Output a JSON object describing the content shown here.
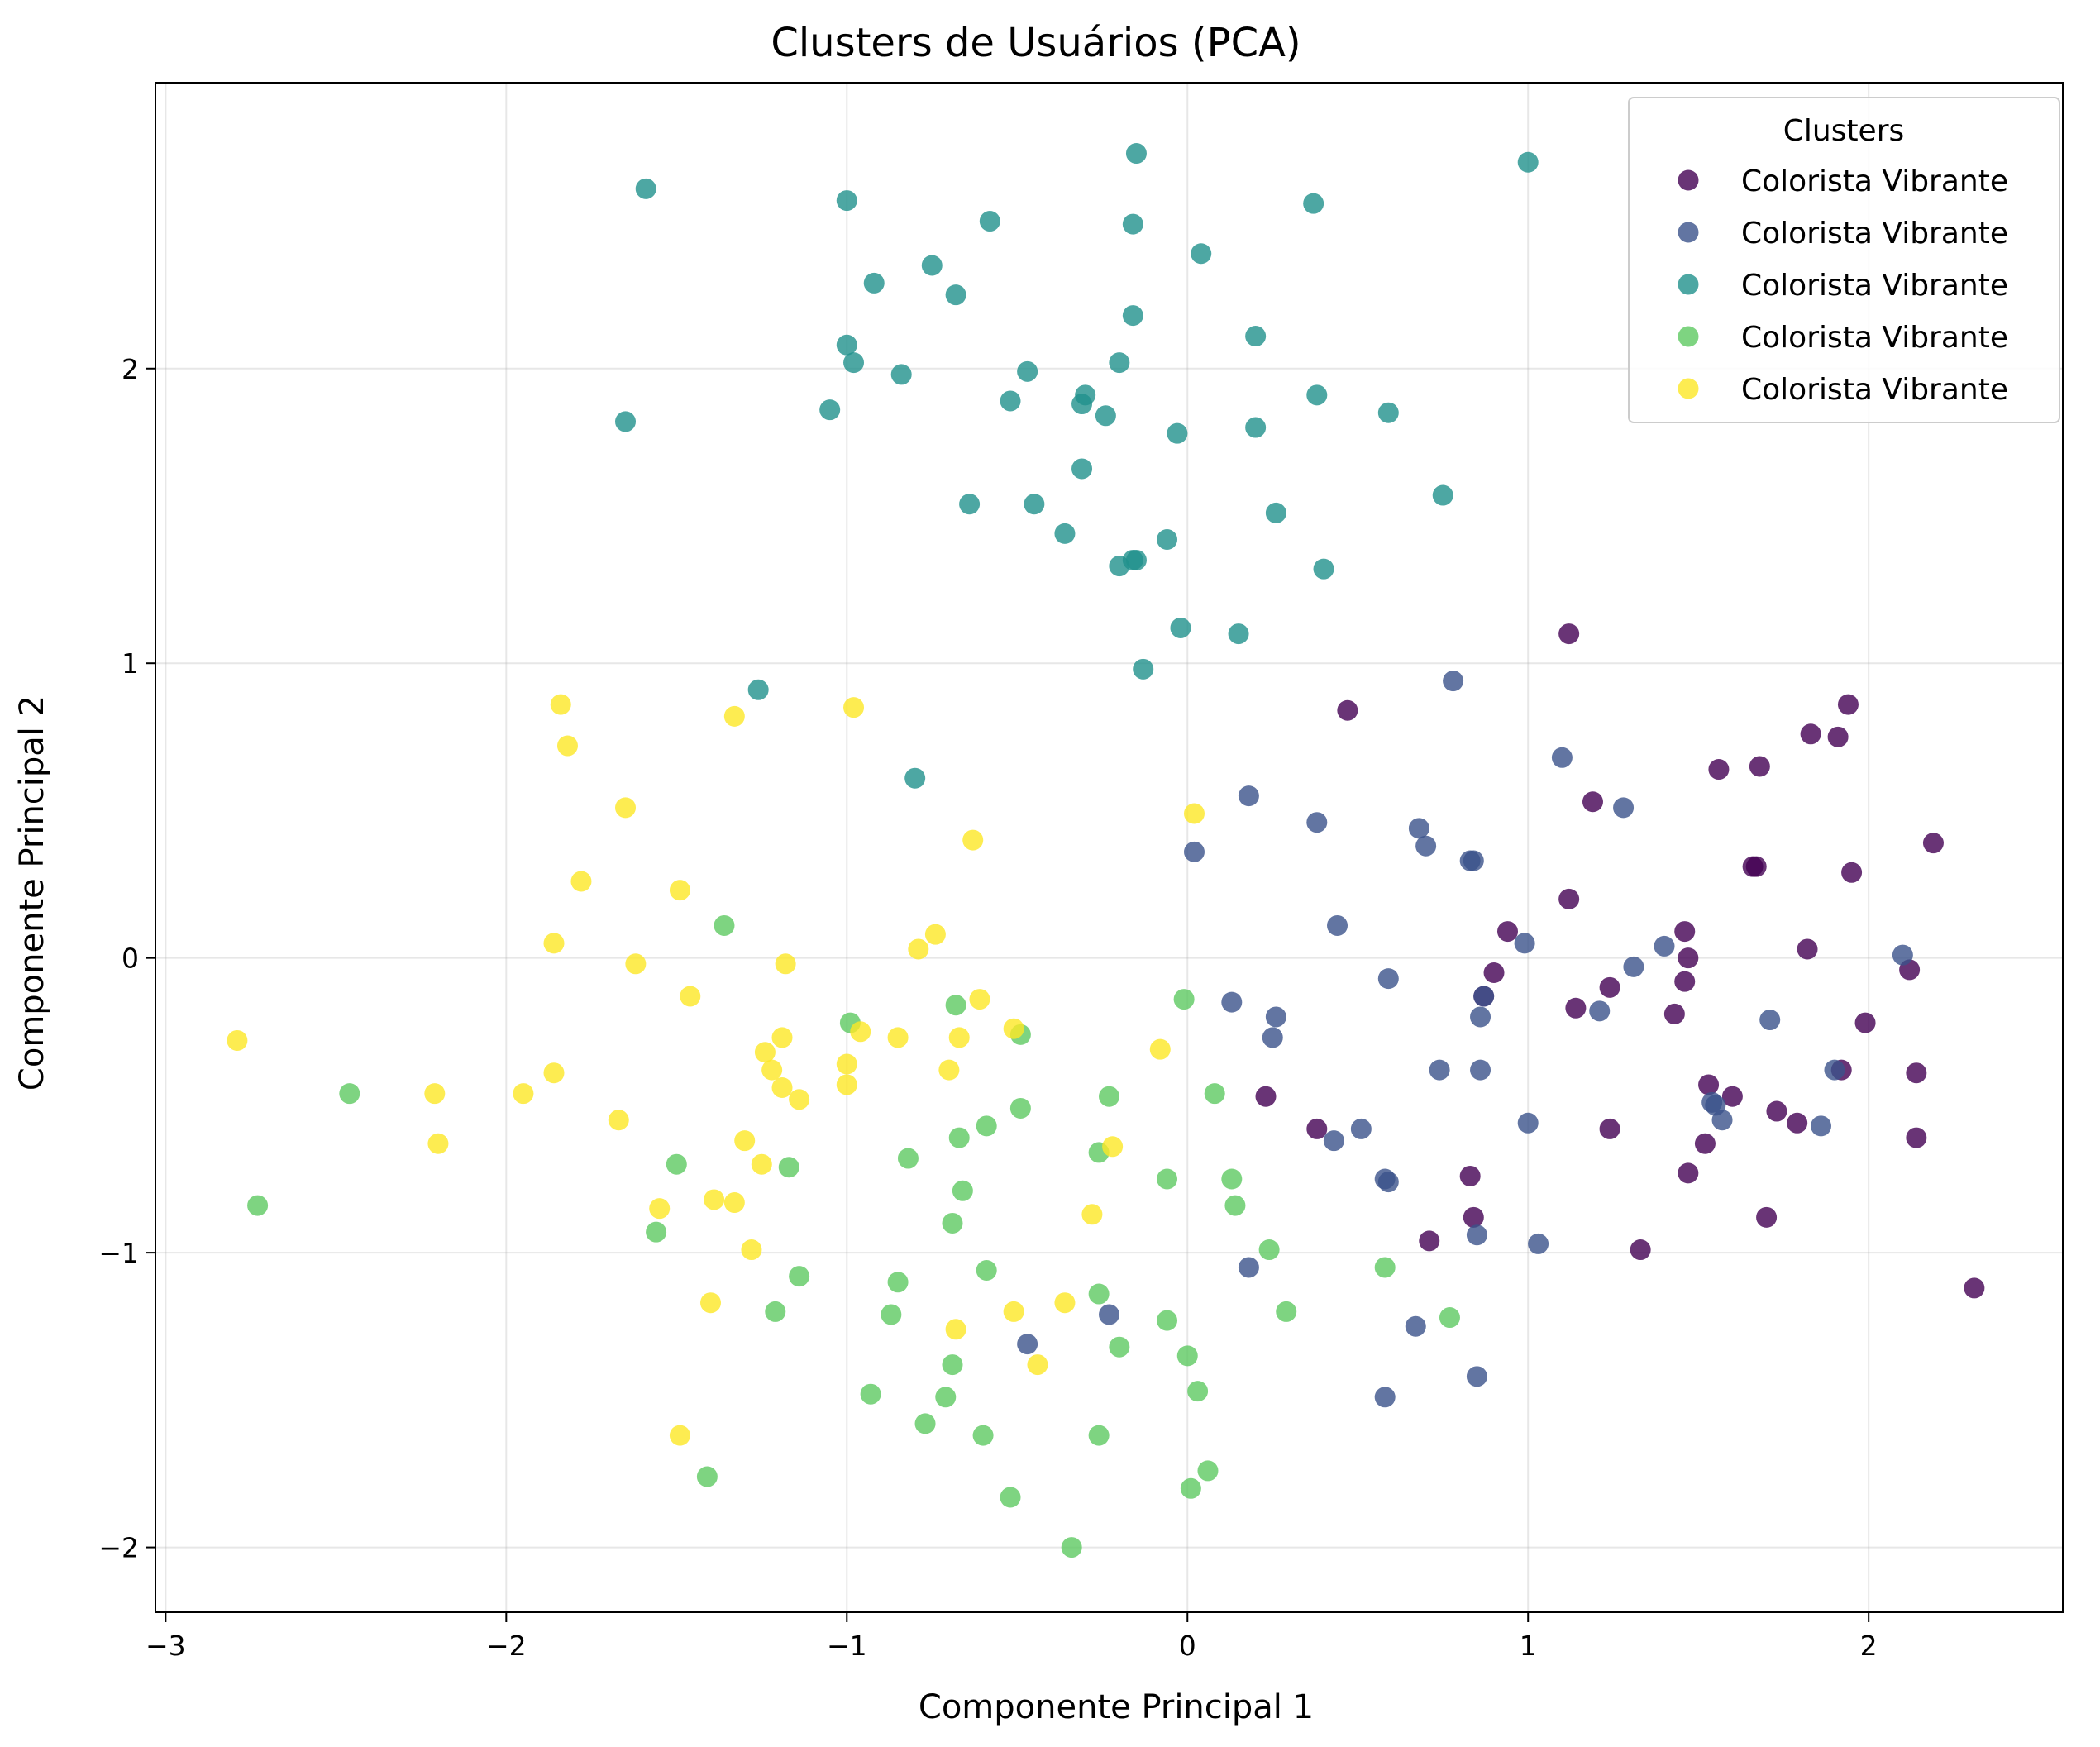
{
  "chart_data": {
    "type": "scatter",
    "title": "Clusters de Usuários (PCA)",
    "xlabel": "Componente Principal 1",
    "ylabel": "Componente Principal 2",
    "xlim": [
      -3.03,
      2.57
    ],
    "ylim": [
      -2.22,
      2.97
    ],
    "xticks": [
      -3,
      -2,
      -1,
      0,
      1,
      2
    ],
    "yticks": [
      -2,
      -1,
      0,
      1,
      2
    ],
    "xtick_labels": [
      "−3",
      "−2",
      "−1",
      "0",
      "1",
      "2"
    ],
    "ytick_labels": [
      "−2",
      "−1",
      "0",
      "1",
      "2"
    ],
    "grid": true,
    "legend_title": "Clusters",
    "legend_position": "top-right",
    "series": [
      {
        "name": "Colorista Vibrante",
        "color": "#440154",
        "points": [
          [
            1.12,
            1.1
          ],
          [
            0.47,
            0.84
          ],
          [
            1.94,
            0.86
          ],
          [
            1.83,
            0.76
          ],
          [
            1.91,
            0.75
          ],
          [
            1.56,
            0.64
          ],
          [
            1.68,
            0.65
          ],
          [
            1.19,
            0.53
          ],
          [
            2.19,
            0.39
          ],
          [
            1.67,
            0.31
          ],
          [
            1.66,
            0.31
          ],
          [
            1.95,
            0.29
          ],
          [
            1.12,
            0.2
          ],
          [
            0.94,
            0.09
          ],
          [
            1.46,
            0.09
          ],
          [
            1.82,
            0.03
          ],
          [
            1.47,
            0.0
          ],
          [
            1.46,
            -0.08
          ],
          [
            0.9,
            -0.05
          ],
          [
            2.12,
            -0.04
          ],
          [
            1.24,
            -0.1
          ],
          [
            0.87,
            -0.13
          ],
          [
            1.14,
            -0.17
          ],
          [
            1.43,
            -0.19
          ],
          [
            1.99,
            -0.22
          ],
          [
            2.14,
            -0.39
          ],
          [
            1.92,
            -0.38
          ],
          [
            1.53,
            -0.43
          ],
          [
            1.6,
            -0.47
          ],
          [
            0.23,
            -0.47
          ],
          [
            1.73,
            -0.52
          ],
          [
            1.79,
            -0.56
          ],
          [
            0.38,
            -0.58
          ],
          [
            1.24,
            -0.58
          ],
          [
            2.14,
            -0.61
          ],
          [
            1.52,
            -0.63
          ],
          [
            1.47,
            -0.73
          ],
          [
            0.83,
            -0.74
          ],
          [
            0.84,
            -0.88
          ],
          [
            1.7,
            -0.88
          ],
          [
            0.71,
            -0.96
          ],
          [
            1.33,
            -0.99
          ],
          [
            2.31,
            -1.12
          ]
        ]
      },
      {
        "name": "Colorista Vibrante",
        "color": "#3b528b",
        "points": [
          [
            0.78,
            0.94
          ],
          [
            1.1,
            0.68
          ],
          [
            0.18,
            0.55
          ],
          [
            1.28,
            0.51
          ],
          [
            0.38,
            0.46
          ],
          [
            0.68,
            0.44
          ],
          [
            0.7,
            0.38
          ],
          [
            0.02,
            0.36
          ],
          [
            0.83,
            0.33
          ],
          [
            0.84,
            0.33
          ],
          [
            0.44,
            0.11
          ],
          [
            0.99,
            0.05
          ],
          [
            1.4,
            0.04
          ],
          [
            2.1,
            0.01
          ],
          [
            1.31,
            -0.03
          ],
          [
            0.59,
            -0.07
          ],
          [
            0.87,
            -0.13
          ],
          [
            0.13,
            -0.15
          ],
          [
            1.21,
            -0.18
          ],
          [
            0.26,
            -0.2
          ],
          [
            0.86,
            -0.2
          ],
          [
            1.71,
            -0.21
          ],
          [
            0.25,
            -0.27
          ],
          [
            0.74,
            -0.38
          ],
          [
            0.86,
            -0.38
          ],
          [
            1.9,
            -0.38
          ],
          [
            1.54,
            -0.49
          ],
          [
            1.55,
            -0.5
          ],
          [
            1.57,
            -0.55
          ],
          [
            1.0,
            -0.56
          ],
          [
            1.86,
            -0.57
          ],
          [
            0.51,
            -0.58
          ],
          [
            0.43,
            -0.62
          ],
          [
            0.58,
            -0.75
          ],
          [
            0.59,
            -0.76
          ],
          [
            0.85,
            -0.94
          ],
          [
            1.03,
            -0.97
          ],
          [
            0.18,
            -1.05
          ],
          [
            -0.23,
            -1.21
          ],
          [
            0.67,
            -1.25
          ],
          [
            -0.47,
            -1.31
          ],
          [
            0.85,
            -1.42
          ],
          [
            0.58,
            -1.49
          ]
        ]
      },
      {
        "name": "Colorista Vibrante",
        "color": "#21918c",
        "points": [
          [
            -0.15,
            2.73
          ],
          [
            1.0,
            2.7
          ],
          [
            -1.59,
            2.61
          ],
          [
            -1.0,
            2.57
          ],
          [
            0.37,
            2.56
          ],
          [
            -0.58,
            2.5
          ],
          [
            -0.16,
            2.49
          ],
          [
            0.04,
            2.39
          ],
          [
            -0.75,
            2.35
          ],
          [
            -0.92,
            2.29
          ],
          [
            -0.68,
            2.25
          ],
          [
            -0.16,
            2.18
          ],
          [
            0.2,
            2.11
          ],
          [
            -1.0,
            2.08
          ],
          [
            -0.98,
            2.02
          ],
          [
            -0.2,
            2.02
          ],
          [
            -0.47,
            1.99
          ],
          [
            -0.84,
            1.98
          ],
          [
            -0.3,
            1.91
          ],
          [
            0.38,
            1.91
          ],
          [
            -0.52,
            1.89
          ],
          [
            -0.31,
            1.88
          ],
          [
            -1.05,
            1.86
          ],
          [
            0.59,
            1.85
          ],
          [
            -0.24,
            1.84
          ],
          [
            -1.65,
            1.82
          ],
          [
            0.2,
            1.8
          ],
          [
            -0.03,
            1.78
          ],
          [
            -0.31,
            1.66
          ],
          [
            -0.64,
            1.54
          ],
          [
            -0.45,
            1.54
          ],
          [
            0.75,
            1.57
          ],
          [
            0.26,
            1.51
          ],
          [
            -0.36,
            1.44
          ],
          [
            -0.06,
            1.42
          ],
          [
            -0.15,
            1.35
          ],
          [
            -0.16,
            1.35
          ],
          [
            -0.2,
            1.33
          ],
          [
            0.4,
            1.32
          ],
          [
            -0.02,
            1.12
          ],
          [
            0.15,
            1.1
          ],
          [
            -0.13,
            0.98
          ],
          [
            -1.26,
            0.91
          ],
          [
            -0.8,
            0.61
          ]
        ]
      },
      {
        "name": "Colorista Vibrante",
        "color": "#5ec962",
        "points": [
          [
            -1.36,
            0.11
          ],
          [
            -0.01,
            -0.14
          ],
          [
            -0.68,
            -0.16
          ],
          [
            -0.99,
            -0.22
          ],
          [
            -0.49,
            -0.26
          ],
          [
            -2.46,
            -0.46
          ],
          [
            0.08,
            -0.46
          ],
          [
            -0.23,
            -0.47
          ],
          [
            -0.49,
            -0.51
          ],
          [
            -0.59,
            -0.57
          ],
          [
            -0.67,
            -0.61
          ],
          [
            -0.26,
            -0.66
          ],
          [
            -0.82,
            -0.68
          ],
          [
            -1.5,
            -0.7
          ],
          [
            -1.17,
            -0.71
          ],
          [
            -0.06,
            -0.75
          ],
          [
            0.13,
            -0.75
          ],
          [
            -0.66,
            -0.79
          ],
          [
            -2.73,
            -0.84
          ],
          [
            0.14,
            -0.84
          ],
          [
            -0.69,
            -0.9
          ],
          [
            -1.56,
            -0.93
          ],
          [
            0.24,
            -0.99
          ],
          [
            -0.59,
            -1.06
          ],
          [
            0.58,
            -1.05
          ],
          [
            -1.14,
            -1.08
          ],
          [
            -0.85,
            -1.1
          ],
          [
            -0.26,
            -1.14
          ],
          [
            -1.21,
            -1.2
          ],
          [
            -0.87,
            -1.21
          ],
          [
            0.29,
            -1.2
          ],
          [
            0.77,
            -1.22
          ],
          [
            -0.06,
            -1.23
          ],
          [
            -0.2,
            -1.32
          ],
          [
            0.0,
            -1.35
          ],
          [
            -0.69,
            -1.38
          ],
          [
            0.03,
            -1.47
          ],
          [
            -0.93,
            -1.48
          ],
          [
            -0.71,
            -1.49
          ],
          [
            -0.77,
            -1.58
          ],
          [
            -0.26,
            -1.62
          ],
          [
            -0.6,
            -1.62
          ],
          [
            0.06,
            -1.74
          ],
          [
            -1.41,
            -1.76
          ],
          [
            0.01,
            -1.8
          ],
          [
            -0.52,
            -1.83
          ],
          [
            -0.34,
            -2.0
          ]
        ]
      },
      {
        "name": "Colorista Vibrante",
        "color": "#fde725",
        "points": [
          [
            -1.84,
            0.86
          ],
          [
            -0.98,
            0.85
          ],
          [
            -1.33,
            0.82
          ],
          [
            -1.82,
            0.72
          ],
          [
            -1.65,
            0.51
          ],
          [
            0.02,
            0.49
          ],
          [
            -0.63,
            0.4
          ],
          [
            -1.78,
            0.26
          ],
          [
            -1.49,
            0.23
          ],
          [
            -0.74,
            0.08
          ],
          [
            -1.86,
            0.05
          ],
          [
            -0.79,
            0.03
          ],
          [
            -1.62,
            -0.02
          ],
          [
            -1.18,
            -0.02
          ],
          [
            -1.46,
            -0.13
          ],
          [
            -0.61,
            -0.14
          ],
          [
            -0.96,
            -0.25
          ],
          [
            -0.51,
            -0.24
          ],
          [
            -2.79,
            -0.28
          ],
          [
            -1.19,
            -0.27
          ],
          [
            -0.85,
            -0.27
          ],
          [
            -0.67,
            -0.27
          ],
          [
            -0.08,
            -0.31
          ],
          [
            -1.24,
            -0.32
          ],
          [
            -1.0,
            -0.36
          ],
          [
            -1.22,
            -0.38
          ],
          [
            -0.7,
            -0.38
          ],
          [
            -1.86,
            -0.39
          ],
          [
            -1.19,
            -0.44
          ],
          [
            -1.0,
            -0.43
          ],
          [
            -1.95,
            -0.46
          ],
          [
            -2.21,
            -0.46
          ],
          [
            -1.14,
            -0.48
          ],
          [
            -1.67,
            -0.55
          ],
          [
            -1.3,
            -0.62
          ],
          [
            -2.2,
            -0.63
          ],
          [
            -0.22,
            -0.64
          ],
          [
            -1.25,
            -0.7
          ],
          [
            -1.39,
            -0.82
          ],
          [
            -1.33,
            -0.83
          ],
          [
            -1.55,
            -0.85
          ],
          [
            -0.28,
            -0.87
          ],
          [
            -1.28,
            -0.99
          ],
          [
            -1.4,
            -1.17
          ],
          [
            -0.36,
            -1.17
          ],
          [
            -0.51,
            -1.2
          ],
          [
            -0.68,
            -1.26
          ],
          [
            -0.44,
            -1.38
          ],
          [
            -1.49,
            -1.62
          ]
        ]
      }
    ]
  }
}
